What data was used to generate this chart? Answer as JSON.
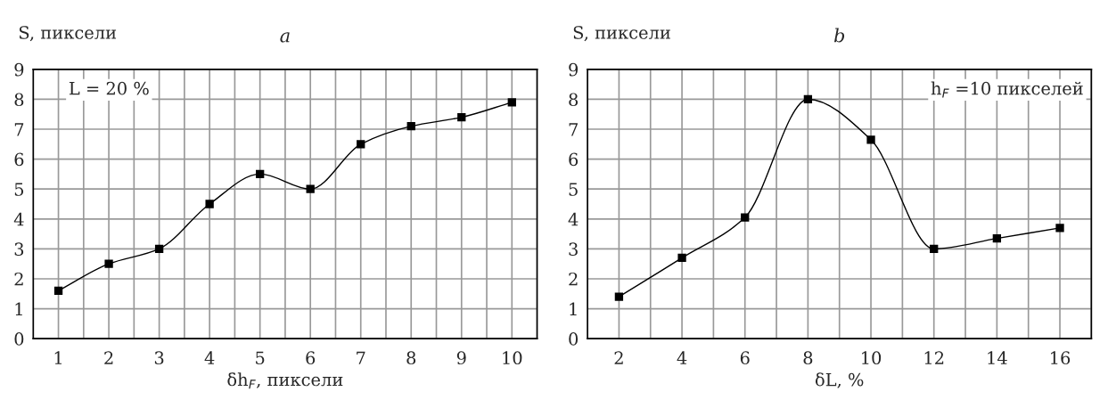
{
  "chart_data": [
    {
      "type": "line",
      "title": "a",
      "xlabel": "δh$_{F}$, пиксели",
      "ylabel": "S, пиксели",
      "categories": [
        "1",
        "2",
        "3",
        "4",
        "5",
        "6",
        "7",
        "8",
        "9",
        "10"
      ],
      "series": [
        {
          "color": "#000000",
          "values": [
            1.6,
            2.5,
            3.0,
            4.5,
            5.5,
            5.0,
            6.5,
            7.1,
            7.4,
            7.9
          ]
        }
      ],
      "ylim": [
        0,
        9
      ],
      "yticks": [
        0,
        1,
        2,
        3,
        4,
        5,
        6,
        7,
        8,
        9
      ],
      "grid": true,
      "marker": "square",
      "line_style": "solid",
      "annotations": [
        "L = 20 %"
      ]
    },
    {
      "type": "line",
      "title": "b",
      "xlabel": "δL, %",
      "ylabel": "S, пиксели",
      "categories": [
        "2",
        "4",
        "6",
        "8",
        "10",
        "12",
        "14",
        "16"
      ],
      "series": [
        {
          "color": "#000000",
          "values": [
            1.4,
            2.7,
            4.05,
            8.0,
            6.65,
            3.0,
            3.35,
            3.7
          ]
        }
      ],
      "ylim": [
        0,
        9
      ],
      "yticks": [
        0,
        1,
        2,
        3,
        4,
        5,
        6,
        7,
        8,
        9
      ],
      "grid": true,
      "marker": "square",
      "line_style": "solid",
      "annotations": [
        "h$_{F}$ =10 пикселей"
      ]
    }
  ]
}
